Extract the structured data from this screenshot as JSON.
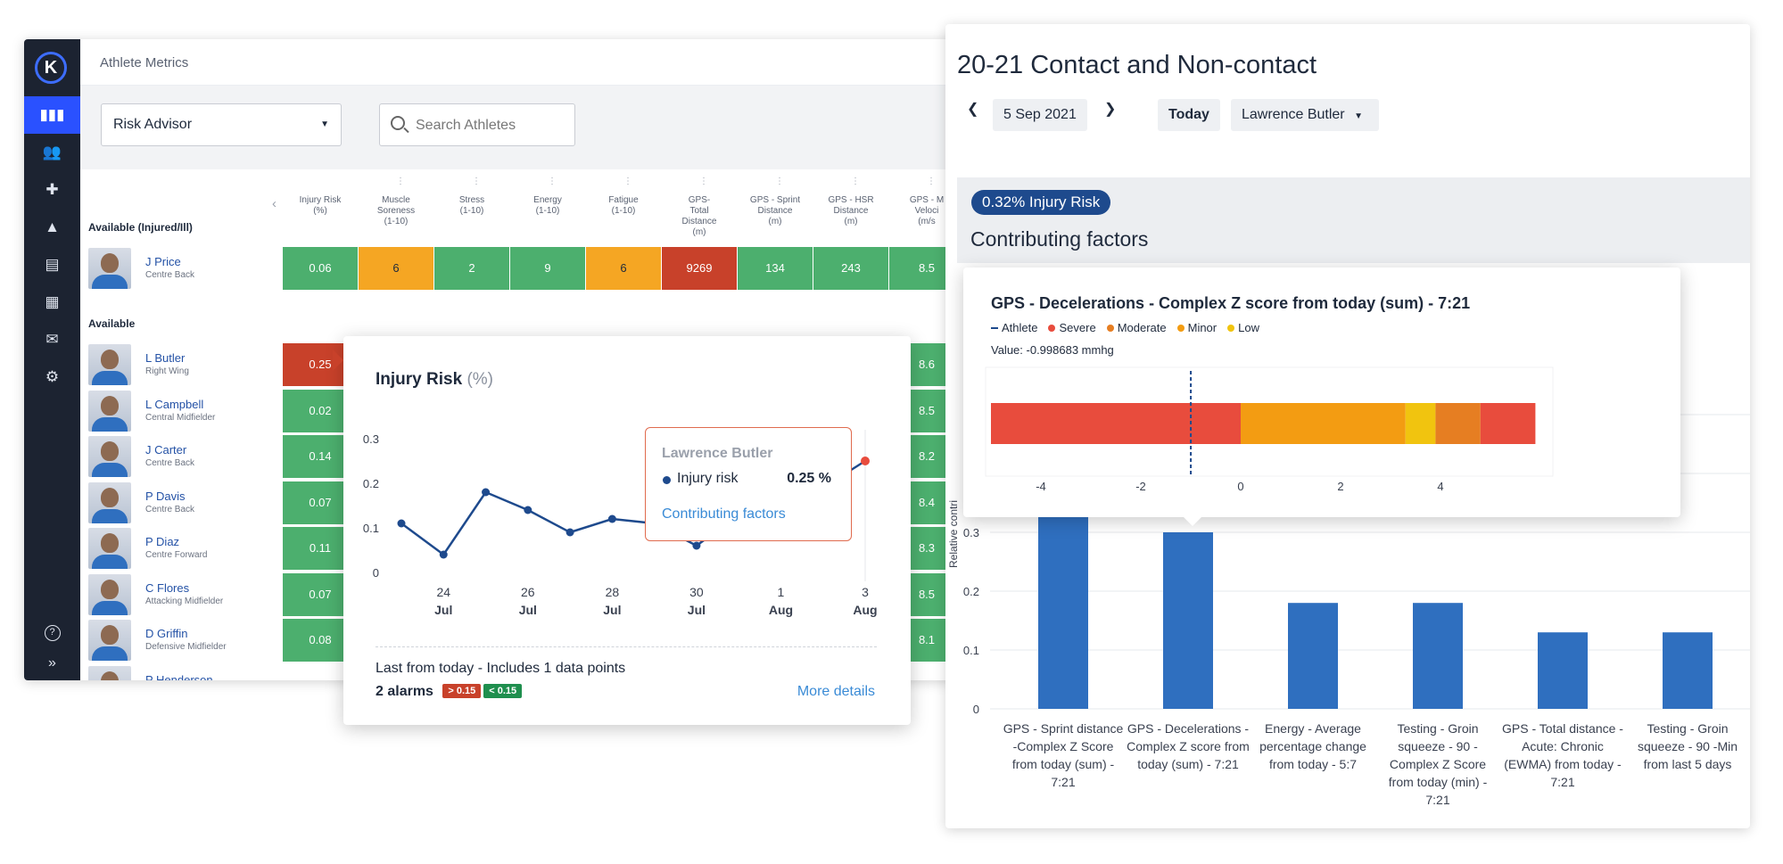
{
  "left_app": {
    "title": "Athlete Metrics",
    "risk_select": "Risk Advisor",
    "search_placeholder": "Search Athletes",
    "nav": [
      "dashboard-icon",
      "athletes-icon",
      "medical-icon",
      "drills-icon",
      "forms-icon",
      "calendar-icon",
      "inbox-icon",
      "settings-icon"
    ],
    "columns": [
      {
        "l1": "Injury Risk",
        "l2": "(%)"
      },
      {
        "l1": "Muscle",
        "l2": "Soreness",
        "l3": "(1-10)"
      },
      {
        "l1": "Stress",
        "l2": "(1-10)"
      },
      {
        "l1": "Energy",
        "l2": "(1-10)"
      },
      {
        "l1": "Fatigue",
        "l2": "(1-10)"
      },
      {
        "l1": "GPS-",
        "l2": "Total",
        "l3": "Distance",
        "l4": "(m)"
      },
      {
        "l1": "GPS - Sprint",
        "l2": "Distance",
        "l3": "(m)"
      },
      {
        "l1": "GPS - HSR",
        "l2": "Distance",
        "l3": "(m)"
      },
      {
        "l1": "GPS - M",
        "l2": "Veloci",
        "l3": "(m/s"
      }
    ],
    "section_injured": "Available (Injured/Ill)",
    "section_available": "Available",
    "injured_row": {
      "name": "J Price",
      "pos": "Centre Back",
      "cells": [
        [
          "0.06",
          "g"
        ],
        [
          "6",
          "o"
        ],
        [
          "2",
          "g"
        ],
        [
          "9",
          "g"
        ],
        [
          "6",
          "o"
        ],
        [
          "9269",
          "r"
        ],
        [
          "134",
          "g"
        ],
        [
          "243",
          "g"
        ],
        [
          "8.5",
          "g"
        ]
      ]
    },
    "athletes": [
      {
        "name": "L Butler",
        "pos": "Right Wing",
        "risk": "0.25",
        "rc": "r",
        "last": "8.6"
      },
      {
        "name": "L Campbell",
        "pos": "Central Midfielder",
        "risk": "0.02",
        "rc": "g",
        "last": "8.5"
      },
      {
        "name": "J Carter",
        "pos": "Centre Back",
        "risk": "0.14",
        "rc": "g",
        "last": "8.2"
      },
      {
        "name": "P Davis",
        "pos": "Centre Back",
        "risk": "0.07",
        "rc": "g",
        "last": "8.4"
      },
      {
        "name": "P Diaz",
        "pos": "Centre Forward",
        "risk": "0.11",
        "rc": "g",
        "last": "8.3"
      },
      {
        "name": "C Flores",
        "pos": "Attacking Midfielder",
        "risk": "0.07",
        "rc": "g",
        "last": "8.5"
      },
      {
        "name": "D Griffin",
        "pos": "Defensive Midfielder",
        "risk": "0.08",
        "rc": "g",
        "last": "8.1"
      },
      {
        "name": "P Henderson",
        "pos": "",
        "risk": "",
        "rc": "g",
        "last": ""
      }
    ],
    "help": "?",
    "collapse": "»"
  },
  "injury_card": {
    "title": "Injury Risk",
    "unit": "(%)",
    "footer": "Last from today - Includes 1 data points",
    "alarms": "2 alarms",
    "badge_hi": "> 0.15",
    "badge_lo": "< 0.15",
    "more": "More details",
    "tooltip": {
      "athlete": "Lawrence Butler",
      "label": "Injury risk",
      "value": "0.25 %",
      "link": "Contributing factors"
    }
  },
  "right_app": {
    "title": "20-21 Contact and Non-contact",
    "date": "5 Sep 2021",
    "today": "Today",
    "athlete": "Lawrence Butler",
    "risk_pill": "0.32% Injury Risk",
    "factors_title": "Contributing factors",
    "ylabel": "Relative contri",
    "categories": [
      "GPS - Sprint distance -Complex Z Score from today (sum) - 7:21",
      "GPS - Decelerations - Complex Z score from today (sum) - 7:21",
      "Energy - Average percentage change from today - 5:7",
      "Testing - Groin squeeze - 90 - Complex Z Score from today (min) - 7:21",
      "GPS - Total distance - Acute: Chronic (EWMA) from today - 7:21",
      "Testing - Groin squeeze - 90 -Min from last 5 days"
    ]
  },
  "decel_card": {
    "title": "GPS - Decelerations - Complex Z score from today (sum) - 7:21",
    "legend": [
      {
        "name": "Athlete",
        "color": "#1e4a8d",
        "kind": "dash"
      },
      {
        "name": "Severe",
        "color": "#e84c3d"
      },
      {
        "name": "Moderate",
        "color": "#e67e22"
      },
      {
        "name": "Minor",
        "color": "#f39c12"
      },
      {
        "name": "Low",
        "color": "#f1c40f"
      }
    ],
    "value": "Value: -0.998683 mmhg"
  },
  "chart_data": [
    {
      "type": "line",
      "title": "Injury Risk",
      "x": [
        "23 Jul",
        "24 Jul",
        "25 Jul",
        "26 Jul",
        "27 Jul",
        "28 Jul",
        "29 Jul",
        "30 Jul",
        "31 Jul",
        "1 Aug",
        "2 Aug",
        "3 Aug"
      ],
      "x_ticks": [
        {
          "d": "24",
          "m": "Jul"
        },
        {
          "d": "26",
          "m": "Jul"
        },
        {
          "d": "28",
          "m": "Jul"
        },
        {
          "d": "30",
          "m": "Jul"
        },
        {
          "d": "1",
          "m": "Aug"
        },
        {
          "d": "3",
          "m": "Aug"
        }
      ],
      "values": [
        0.11,
        0.04,
        0.18,
        0.14,
        0.09,
        0.12,
        0.11,
        0.06,
        0.13,
        0.16,
        0.19,
        0.25
      ],
      "ylim": [
        0,
        0.3
      ],
      "y_ticks": [
        "0",
        "0.1",
        "0.2",
        "0.3"
      ],
      "color": "#1e4a8d",
      "last_point_color": "#e84c3d"
    },
    {
      "type": "bar",
      "title": "Contributing factors",
      "ylabel": "Relative contri",
      "categories": [
        "c1",
        "c2",
        "c3",
        "c4",
        "c5",
        "c6"
      ],
      "values": [
        0.42,
        0.3,
        0.18,
        0.18,
        0.13,
        0.13
      ],
      "ylim": [
        0,
        0.6
      ],
      "y_ticks": [
        "0",
        "0.1",
        "0.2",
        "0.3"
      ],
      "color": "#2f6fbf"
    },
    {
      "type": "bar",
      "title": "GPS - Decelerations - Complex Z score from today (sum) - 7:21",
      "segments": [
        {
          "from": -5.0,
          "to": 0.0,
          "color": "#e84c3d"
        },
        {
          "from": 0.0,
          "to": 3.3,
          "color": "#f39c12"
        },
        {
          "from": 3.3,
          "to": 3.9,
          "color": "#f1c40f"
        },
        {
          "from": 3.9,
          "to": 4.8,
          "color": "#e67e22"
        },
        {
          "from": 4.8,
          "to": 5.9,
          "color": "#e84c3d"
        }
      ],
      "athlete_value": -0.998683,
      "xlim": [
        -5,
        6
      ],
      "x_ticks": [
        "-4",
        "-2",
        "0",
        "2",
        "4"
      ]
    }
  ]
}
